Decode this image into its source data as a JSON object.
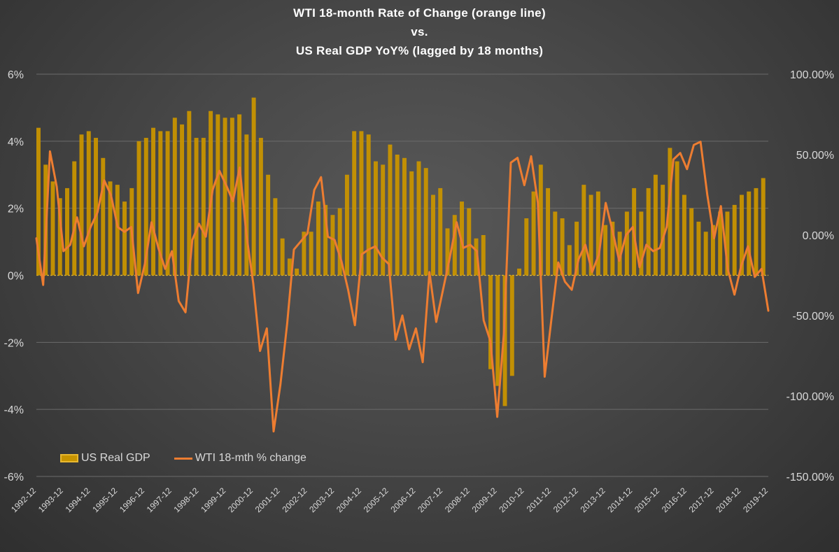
{
  "chart_data": {
    "type": "bar+line",
    "title": [
      "WTI 18-month Rate of Change (orange line)",
      "vs.",
      "US Real GDP YoY% (lagged by 18 months)"
    ],
    "left_axis": {
      "ylim": [
        -6,
        6
      ],
      "ticks": [
        6,
        4,
        2,
        0,
        -2,
        -4,
        -6
      ],
      "tick_labels": [
        "6%",
        "4%",
        "2%",
        "0%",
        "-2%",
        "-4%",
        "-6%"
      ]
    },
    "right_axis": {
      "ylim": [
        -150,
        100
      ],
      "ticks": [
        100,
        50,
        0,
        -50,
        -100,
        -150
      ],
      "tick_labels": [
        "100.00%",
        "50.00%",
        "0.00%",
        "-50.00%",
        "-100.00%",
        "-150.00%"
      ]
    },
    "x_labels": [
      "1992-12",
      "1993-12",
      "1994-12",
      "1995-12",
      "1996-12",
      "1997-12",
      "1998-12",
      "1999-12",
      "2000-12",
      "2001-12",
      "2002-12",
      "2003-12",
      "2004-12",
      "2005-12",
      "2006-12",
      "2007-12",
      "2008-12",
      "2009-12",
      "2010-12",
      "2011-12",
      "2012-12",
      "2013-12",
      "2014-12",
      "2015-12",
      "2016-12",
      "2017-12",
      "2018-12",
      "2019-12"
    ],
    "grid": true,
    "legend_position": "bottom-left",
    "series": [
      {
        "name": "US Real GDP",
        "type": "bar",
        "axis": "left",
        "color": "#c89400",
        "values": [
          4.4,
          3.3,
          2.8,
          2.3,
          2.6,
          3.4,
          4.2,
          4.3,
          4.1,
          3.5,
          2.8,
          2.7,
          2.2,
          2.6,
          4.0,
          4.1,
          4.4,
          4.3,
          4.3,
          4.7,
          4.5,
          4.9,
          4.1,
          4.1,
          4.9,
          4.8,
          4.7,
          4.7,
          4.8,
          4.2,
          5.3,
          4.1,
          3.0,
          2.3,
          1.1,
          0.5,
          0.2,
          1.3,
          1.3,
          2.2,
          2.1,
          1.8,
          2.0,
          3.0,
          4.3,
          4.3,
          4.2,
          3.4,
          3.3,
          3.9,
          3.6,
          3.5,
          3.1,
          3.4,
          3.2,
          2.4,
          2.6,
          1.4,
          1.8,
          2.2,
          2.0,
          1.1,
          1.2,
          -2.8,
          -3.3,
          -3.9,
          -3.0,
          0.2,
          1.7,
          2.5,
          3.3,
          2.6,
          1.9,
          1.7,
          0.9,
          1.6,
          2.7,
          2.4,
          2.5,
          1.5,
          1.6,
          1.3,
          1.9,
          2.6,
          1.9,
          2.6,
          3.0,
          2.7,
          3.8,
          3.4,
          2.4,
          2.0,
          1.6,
          1.3,
          1.5,
          1.9,
          1.9,
          2.1,
          2.4,
          2.5,
          2.6,
          2.9
        ]
      },
      {
        "name": "WTI 18-mth % change",
        "type": "line",
        "axis": "right",
        "color": "#ed7d31",
        "values": [
          -2,
          -31,
          52,
          30,
          -10,
          -6,
          11,
          -7,
          5,
          14,
          34,
          25,
          5,
          2,
          5,
          -36,
          -18,
          8,
          -8,
          -21,
          -10,
          -41,
          -48,
          -3,
          7,
          -1,
          28,
          40,
          31,
          21,
          42,
          0,
          -30,
          -72,
          -58,
          -122,
          -93,
          -55,
          -9,
          -4,
          1,
          28,
          36,
          -1,
          -3,
          -16,
          -34,
          -56,
          -12,
          -9,
          -7,
          -14,
          -18,
          -65,
          -50,
          -71,
          -58,
          -79,
          -23,
          -54,
          -34,
          -14,
          8,
          -8,
          -6,
          -10,
          -53,
          -66,
          -113,
          -60,
          45,
          48,
          31,
          49,
          20,
          -88,
          -52,
          -17,
          -29,
          -34,
          -15,
          -6,
          -23,
          -12,
          20,
          3,
          -16,
          0,
          5,
          -20,
          -6,
          -10,
          -8,
          5,
          47,
          51,
          41,
          56,
          58,
          25,
          -2,
          18,
          -21,
          -37,
          -19,
          -7,
          -26,
          -21,
          -47
        ]
      }
    ]
  }
}
